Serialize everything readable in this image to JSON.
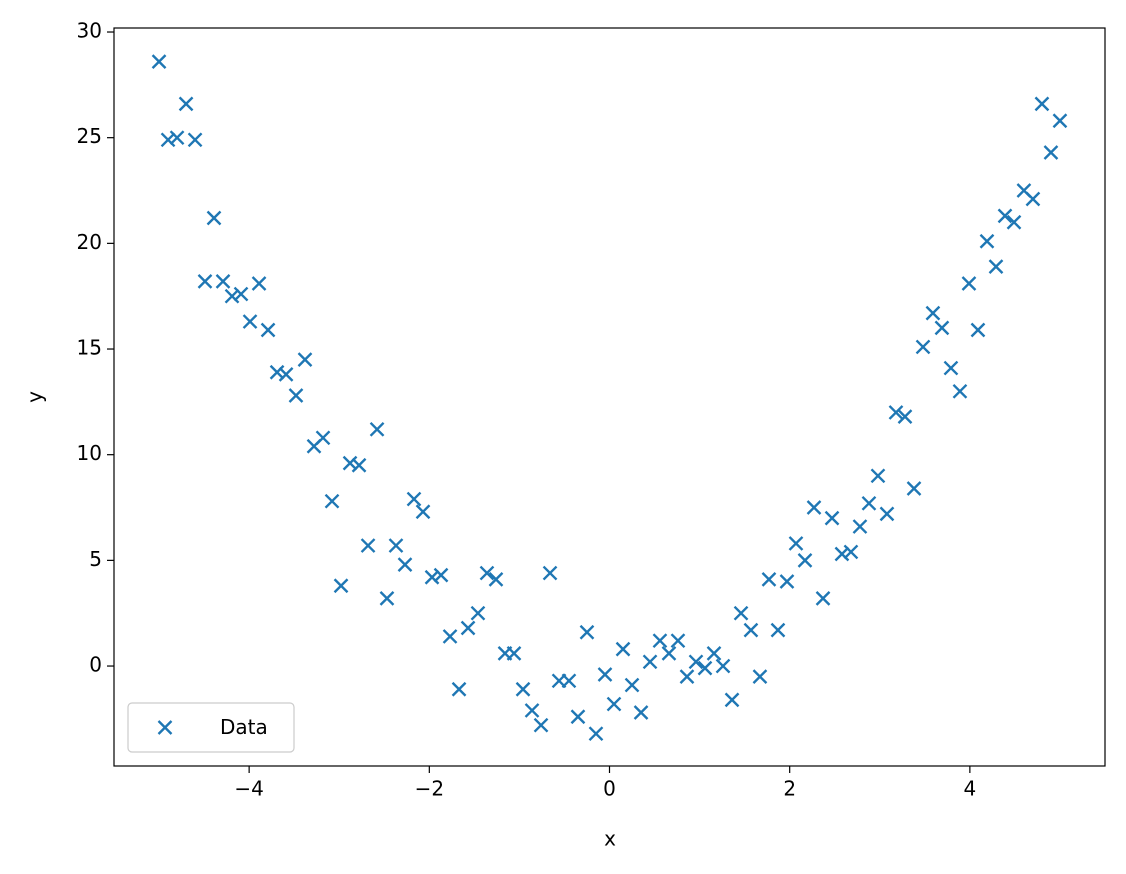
{
  "chart_data": {
    "type": "scatter",
    "xlabel": "x",
    "ylabel": "y",
    "x": [
      -5.0,
      -4.9,
      -4.8,
      -4.7,
      -4.6,
      -4.49,
      -4.39,
      -4.29,
      -4.19,
      -4.09,
      -3.99,
      -3.89,
      -3.79,
      -3.69,
      -3.59,
      -3.48,
      -3.38,
      -3.28,
      -3.18,
      -3.08,
      -2.98,
      -2.88,
      -2.78,
      -2.68,
      -2.58,
      -2.47,
      -2.37,
      -2.27,
      -2.17,
      -2.07,
      -1.97,
      -1.87,
      -1.77,
      -1.67,
      -1.57,
      -1.46,
      -1.36,
      -1.26,
      -1.16,
      -1.06,
      -0.96,
      -0.86,
      -0.76,
      -0.66,
      -0.56,
      -0.45,
      -0.35,
      -0.25,
      -0.15,
      -0.05,
      0.05,
      0.15,
      0.25,
      0.35,
      0.45,
      0.56,
      0.66,
      0.76,
      0.86,
      0.96,
      1.06,
      1.16,
      1.26,
      1.36,
      1.46,
      1.57,
      1.67,
      1.77,
      1.87,
      1.97,
      2.07,
      2.17,
      2.27,
      2.37,
      2.47,
      2.58,
      2.68,
      2.78,
      2.88,
      2.98,
      3.08,
      3.18,
      3.28,
      3.38,
      3.48,
      3.59,
      3.69,
      3.79,
      3.89,
      3.99,
      4.09,
      4.19,
      4.29,
      4.39,
      4.49,
      4.6,
      4.7,
      4.8,
      4.9,
      5.0
    ],
    "series": [
      {
        "name": "Data",
        "color": "#1f77b4",
        "marker": "x",
        "values": [
          28.6,
          24.9,
          25.0,
          26.6,
          24.9,
          18.2,
          21.2,
          18.2,
          17.5,
          17.6,
          16.3,
          18.1,
          15.9,
          13.9,
          13.8,
          12.8,
          14.5,
          10.4,
          10.8,
          7.8,
          3.8,
          9.6,
          9.5,
          5.7,
          11.2,
          3.2,
          5.7,
          4.8,
          7.9,
          7.3,
          4.2,
          4.3,
          1.4,
          -1.1,
          1.8,
          2.5,
          4.4,
          4.1,
          0.6,
          0.6,
          -1.1,
          -2.1,
          -2.8,
          4.4,
          -0.7,
          -0.7,
          -2.4,
          1.6,
          -3.2,
          -0.4,
          -1.8,
          0.8,
          -0.9,
          -2.2,
          0.2,
          1.2,
          0.6,
          1.2,
          -0.5,
          0.2,
          -0.1,
          0.6,
          0.0,
          -1.6,
          2.5,
          1.7,
          -0.5,
          4.1,
          1.7,
          4.0,
          5.8,
          5.0,
          7.5,
          3.2,
          7.0,
          5.3,
          5.4,
          6.6,
          7.7,
          9.0,
          7.2,
          12.0,
          11.8,
          8.4,
          15.1,
          16.7,
          16.0,
          14.1,
          13.0,
          18.1,
          15.9,
          20.1,
          18.9,
          21.3,
          21.0,
          22.5,
          22.1,
          26.6,
          24.3,
          25.8
        ]
      }
    ],
    "xlim": [
      -5.5,
      5.5
    ],
    "ylim": [
      -4.73,
      30.19
    ],
    "xticks": [
      {
        "value": -4,
        "label": "−4"
      },
      {
        "value": -2,
        "label": "−2"
      },
      0,
      2,
      4
    ],
    "yticks": [
      0,
      5,
      10,
      15,
      20,
      25,
      30
    ],
    "grid": false,
    "legend": "lower left"
  }
}
